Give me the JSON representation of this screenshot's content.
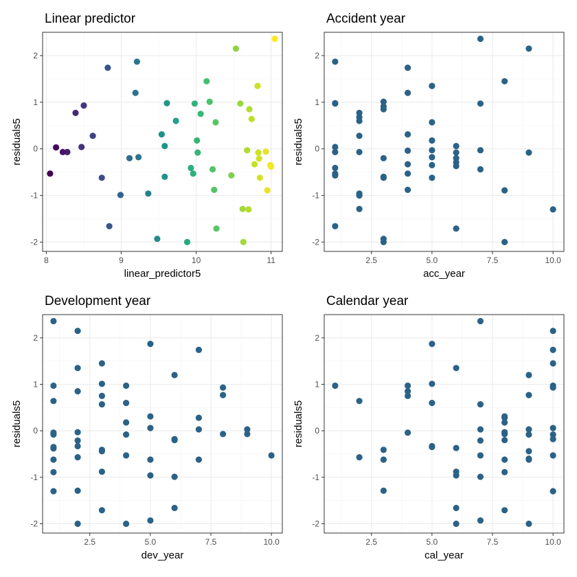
{
  "chart_data": [
    {
      "type": "scatter",
      "title": "Linear predictor",
      "xlabel": "linear_predictor5",
      "ylabel": "residuals5",
      "xlim": [
        7.95,
        11.15
      ],
      "ylim": [
        -2.2,
        2.5
      ],
      "xticks": [
        8,
        9,
        10,
        11
      ],
      "xtick_labels": [
        "8",
        "9",
        "10",
        "11"
      ],
      "yticks": [
        -2,
        -1,
        0,
        1,
        2
      ],
      "ytick_labels": [
        "-2",
        "-1",
        "0",
        "1",
        "2"
      ],
      "grid": true,
      "color_scale": "viridis",
      "color_range": [
        8.05,
        11.05
      ],
      "points": [
        {
          "x": 8.05,
          "y": -0.53
        },
        {
          "x": 8.13,
          "y": 0.03
        },
        {
          "x": 8.22,
          "y": -0.07
        },
        {
          "x": 8.28,
          "y": -0.07
        },
        {
          "x": 8.39,
          "y": 0.77
        },
        {
          "x": 8.47,
          "y": 0.04
        },
        {
          "x": 8.5,
          "y": 0.93
        },
        {
          "x": 8.62,
          "y": 0.28
        },
        {
          "x": 8.74,
          "y": -0.62
        },
        {
          "x": 8.82,
          "y": 1.74
        },
        {
          "x": 8.84,
          "y": -1.66
        },
        {
          "x": 8.99,
          "y": -0.99
        },
        {
          "x": 9.11,
          "y": -0.2
        },
        {
          "x": 9.19,
          "y": 1.2
        },
        {
          "x": 9.21,
          "y": 1.87
        },
        {
          "x": 9.23,
          "y": -0.18
        },
        {
          "x": 9.36,
          "y": -0.96
        },
        {
          "x": 9.48,
          "y": -1.93
        },
        {
          "x": 9.54,
          "y": 0.31
        },
        {
          "x": 9.58,
          "y": 0.06
        },
        {
          "x": 9.58,
          "y": -0.6
        },
        {
          "x": 9.61,
          "y": 0.98
        },
        {
          "x": 9.73,
          "y": 0.6
        },
        {
          "x": 9.88,
          "y": -2.0
        },
        {
          "x": 9.93,
          "y": -0.41
        },
        {
          "x": 9.96,
          "y": -0.53
        },
        {
          "x": 9.98,
          "y": 0.97
        },
        {
          "x": 10.01,
          "y": 0.18
        },
        {
          "x": 10.02,
          "y": -0.08
        },
        {
          "x": 10.06,
          "y": 0.75
        },
        {
          "x": 10.14,
          "y": 1.45
        },
        {
          "x": 10.18,
          "y": 1.01
        },
        {
          "x": 10.22,
          "y": -0.44
        },
        {
          "x": 10.24,
          "y": -0.88
        },
        {
          "x": 10.26,
          "y": 0.57
        },
        {
          "x": 10.27,
          "y": -1.71
        },
        {
          "x": 10.47,
          "y": -0.57
        },
        {
          "x": 10.53,
          "y": 2.15
        },
        {
          "x": 10.59,
          "y": 0.97
        },
        {
          "x": 10.62,
          "y": -1.29
        },
        {
          "x": 10.63,
          "y": -2.0
        },
        {
          "x": 10.68,
          "y": -0.03
        },
        {
          "x": 10.7,
          "y": -1.3
        },
        {
          "x": 10.71,
          "y": 0.85
        },
        {
          "x": 10.74,
          "y": 0.64
        },
        {
          "x": 10.78,
          "y": -0.33
        },
        {
          "x": 10.82,
          "y": 1.35
        },
        {
          "x": 10.83,
          "y": -0.08
        },
        {
          "x": 10.84,
          "y": -0.21
        },
        {
          "x": 10.85,
          "y": -0.62
        },
        {
          "x": 10.93,
          "y": -0.06
        },
        {
          "x": 10.95,
          "y": -0.89
        },
        {
          "x": 10.99,
          "y": -0.35
        },
        {
          "x": 11.0,
          "y": -0.38
        },
        {
          "x": 11.05,
          "y": 2.36
        }
      ]
    },
    {
      "type": "scatter",
      "title": "Accident year",
      "xlabel": "acc_year",
      "ylabel": "residuals5",
      "xlim": [
        0.55,
        10.45
      ],
      "ylim": [
        -2.2,
        2.5
      ],
      "xticks": [
        2.5,
        5.0,
        7.5,
        10.0
      ],
      "xtick_labels": [
        "2.5",
        "5.0",
        "7.5",
        "10.0"
      ],
      "yticks": [
        -2,
        -1,
        0,
        1,
        2
      ],
      "ytick_labels": [
        "-2",
        "-1",
        "0",
        "1",
        "2"
      ],
      "grid": true,
      "color": "#2b6287",
      "points": [
        {
          "x": 1,
          "y": 1.87
        },
        {
          "x": 1,
          "y": 0.97
        },
        {
          "x": 1,
          "y": 0.98
        },
        {
          "x": 1,
          "y": 0.04
        },
        {
          "x": 1,
          "y": -0.07
        },
        {
          "x": 1,
          "y": -0.41
        },
        {
          "x": 1,
          "y": -0.53
        },
        {
          "x": 1,
          "y": -0.57
        },
        {
          "x": 1,
          "y": -1.66
        },
        {
          "x": 2,
          "y": 0.77
        },
        {
          "x": 2,
          "y": 0.68
        },
        {
          "x": 2,
          "y": 0.6
        },
        {
          "x": 2,
          "y": 0.28
        },
        {
          "x": 2,
          "y": -0.07
        },
        {
          "x": 2,
          "y": -0.96
        },
        {
          "x": 2,
          "y": -1.0
        },
        {
          "x": 2,
          "y": -1.29
        },
        {
          "x": 3,
          "y": 1.01
        },
        {
          "x": 3,
          "y": 0.91
        },
        {
          "x": 3,
          "y": 0.85
        },
        {
          "x": 3,
          "y": -0.2
        },
        {
          "x": 3,
          "y": -0.6
        },
        {
          "x": 3,
          "y": -0.62
        },
        {
          "x": 3,
          "y": -1.93
        },
        {
          "x": 3,
          "y": -2.0
        },
        {
          "x": 4,
          "y": 1.74
        },
        {
          "x": 4,
          "y": 1.2
        },
        {
          "x": 4,
          "y": 0.31
        },
        {
          "x": 4,
          "y": -0.04
        },
        {
          "x": 4,
          "y": -0.33
        },
        {
          "x": 4,
          "y": -0.53
        },
        {
          "x": 4,
          "y": -0.88
        },
        {
          "x": 5,
          "y": 1.35
        },
        {
          "x": 5,
          "y": 0.57
        },
        {
          "x": 5,
          "y": 0.18
        },
        {
          "x": 5,
          "y": -0.03
        },
        {
          "x": 5,
          "y": -0.18
        },
        {
          "x": 5,
          "y": -0.35
        },
        {
          "x": 5,
          "y": -0.62
        },
        {
          "x": 6,
          "y": 0.06
        },
        {
          "x": 6,
          "y": -0.08
        },
        {
          "x": 6,
          "y": -0.2
        },
        {
          "x": 6,
          "y": -0.29
        },
        {
          "x": 6,
          "y": -0.37
        },
        {
          "x": 6,
          "y": -1.71
        },
        {
          "x": 7,
          "y": 2.36
        },
        {
          "x": 7,
          "y": 0.97
        },
        {
          "x": 7,
          "y": -0.03
        },
        {
          "x": 7,
          "y": -0.44
        },
        {
          "x": 8,
          "y": 1.45
        },
        {
          "x": 8,
          "y": -0.89
        },
        {
          "x": 8,
          "y": -2.0
        },
        {
          "x": 9,
          "y": 2.15
        },
        {
          "x": 9,
          "y": -0.08
        },
        {
          "x": 10,
          "y": -1.3
        }
      ]
    },
    {
      "type": "scatter",
      "title": "Development year",
      "xlabel": "dev_year",
      "ylabel": "residuals5",
      "xlim": [
        0.55,
        10.45
      ],
      "ylim": [
        -2.2,
        2.5
      ],
      "xticks": [
        2.5,
        5.0,
        7.5,
        10.0
      ],
      "xtick_labels": [
        "2.5",
        "5.0",
        "7.5",
        "10.0"
      ],
      "yticks": [
        -2,
        -1,
        0,
        1,
        2
      ],
      "ytick_labels": [
        "-2",
        "-1",
        "0",
        "1",
        "2"
      ],
      "grid": true,
      "color": "#2b6287",
      "points": [
        {
          "x": 1,
          "y": 2.36
        },
        {
          "x": 1,
          "y": 0.97
        },
        {
          "x": 1,
          "y": 0.64
        },
        {
          "x": 1,
          "y": -0.04
        },
        {
          "x": 1,
          "y": -0.08
        },
        {
          "x": 1,
          "y": -0.35
        },
        {
          "x": 1,
          "y": -0.38
        },
        {
          "x": 1,
          "y": -0.62
        },
        {
          "x": 1,
          "y": -0.89
        },
        {
          "x": 1,
          "y": -1.3
        },
        {
          "x": 2,
          "y": 2.15
        },
        {
          "x": 2,
          "y": 1.35
        },
        {
          "x": 2,
          "y": 0.85
        },
        {
          "x": 2,
          "y": -0.03
        },
        {
          "x": 2,
          "y": -0.21
        },
        {
          "x": 2,
          "y": -0.33
        },
        {
          "x": 2,
          "y": -0.57
        },
        {
          "x": 2,
          "y": -1.29
        },
        {
          "x": 2,
          "y": -2.0
        },
        {
          "x": 3,
          "y": 1.45
        },
        {
          "x": 3,
          "y": 1.01
        },
        {
          "x": 3,
          "y": 0.75
        },
        {
          "x": 3,
          "y": 0.57
        },
        {
          "x": 3,
          "y": -0.41
        },
        {
          "x": 3,
          "y": -0.44
        },
        {
          "x": 3,
          "y": -0.88
        },
        {
          "x": 3,
          "y": -1.71
        },
        {
          "x": 4,
          "y": 0.97
        },
        {
          "x": 4,
          "y": 0.6
        },
        {
          "x": 4,
          "y": 0.18
        },
        {
          "x": 4,
          "y": -0.08
        },
        {
          "x": 4,
          "y": -0.53
        },
        {
          "x": 4,
          "y": -2.0
        },
        {
          "x": 5,
          "y": 1.87
        },
        {
          "x": 5,
          "y": 0.31
        },
        {
          "x": 5,
          "y": 0.06
        },
        {
          "x": 5,
          "y": -0.62
        },
        {
          "x": 5,
          "y": -0.96
        },
        {
          "x": 5,
          "y": -1.93
        },
        {
          "x": 6,
          "y": 1.2
        },
        {
          "x": 6,
          "y": -0.18
        },
        {
          "x": 6,
          "y": -0.2
        },
        {
          "x": 6,
          "y": -0.99
        },
        {
          "x": 6,
          "y": -1.66
        },
        {
          "x": 7,
          "y": 1.74
        },
        {
          "x": 7,
          "y": 0.28
        },
        {
          "x": 7,
          "y": 0.03
        },
        {
          "x": 7,
          "y": -0.62
        },
        {
          "x": 8,
          "y": 0.93
        },
        {
          "x": 8,
          "y": 0.77
        },
        {
          "x": 8,
          "y": -0.07
        },
        {
          "x": 9,
          "y": 0.03
        },
        {
          "x": 9,
          "y": -0.07
        },
        {
          "x": 10,
          "y": -0.53
        }
      ]
    },
    {
      "type": "scatter",
      "title": "Calendar year",
      "xlabel": "cal_year",
      "ylabel": "residuals5",
      "xlim": [
        0.55,
        10.45
      ],
      "ylim": [
        -2.2,
        2.5
      ],
      "xticks": [
        2.5,
        5.0,
        7.5,
        10.0
      ],
      "xtick_labels": [
        "2.5",
        "5.0",
        "7.5",
        "10.0"
      ],
      "yticks": [
        -2,
        -1,
        0,
        1,
        2
      ],
      "ytick_labels": [
        "-2",
        "-1",
        "0",
        "1",
        "2"
      ],
      "grid": true,
      "color": "#2b6287",
      "points": [
        {
          "x": 1,
          "y": 0.97
        },
        {
          "x": 2,
          "y": 0.64
        },
        {
          "x": 2,
          "y": -0.57
        },
        {
          "x": 3,
          "y": -0.41
        },
        {
          "x": 3,
          "y": -0.62
        },
        {
          "x": 3,
          "y": -1.29
        },
        {
          "x": 4,
          "y": 0.97
        },
        {
          "x": 4,
          "y": 0.85
        },
        {
          "x": 4,
          "y": 0.75
        },
        {
          "x": 4,
          "y": -0.04
        },
        {
          "x": 5,
          "y": 1.87
        },
        {
          "x": 5,
          "y": 1.01
        },
        {
          "x": 5,
          "y": 0.6
        },
        {
          "x": 5,
          "y": -0.33
        },
        {
          "x": 5,
          "y": -0.35
        },
        {
          "x": 6,
          "y": 1.35
        },
        {
          "x": 6,
          "y": -0.37
        },
        {
          "x": 6,
          "y": -0.88
        },
        {
          "x": 6,
          "y": -0.96
        },
        {
          "x": 6,
          "y": -1.66
        },
        {
          "x": 6,
          "y": -2.0
        },
        {
          "x": 7,
          "y": 2.36
        },
        {
          "x": 7,
          "y": 0.57
        },
        {
          "x": 7,
          "y": 0.03
        },
        {
          "x": 7,
          "y": -0.21
        },
        {
          "x": 7,
          "y": -0.53
        },
        {
          "x": 7,
          "y": -0.99
        },
        {
          "x": 7,
          "y": -1.93
        },
        {
          "x": 8,
          "y": 0.31
        },
        {
          "x": 8,
          "y": 0.28
        },
        {
          "x": 8,
          "y": 0.18
        },
        {
          "x": 8,
          "y": -0.03
        },
        {
          "x": 8,
          "y": -0.07
        },
        {
          "x": 8,
          "y": -0.2
        },
        {
          "x": 8,
          "y": -0.62
        },
        {
          "x": 8,
          "y": -0.89
        },
        {
          "x": 8,
          "y": -1.71
        },
        {
          "x": 9,
          "y": 1.2
        },
        {
          "x": 9,
          "y": 0.77
        },
        {
          "x": 9,
          "y": 0.03
        },
        {
          "x": 9,
          "y": -0.08
        },
        {
          "x": 9,
          "y": -0.44
        },
        {
          "x": 9,
          "y": -0.6
        },
        {
          "x": 9,
          "y": -0.62
        },
        {
          "x": 9,
          "y": -2.0
        },
        {
          "x": 10,
          "y": 2.15
        },
        {
          "x": 10,
          "y": 1.74
        },
        {
          "x": 10,
          "y": 1.45
        },
        {
          "x": 10,
          "y": 0.97
        },
        {
          "x": 10,
          "y": 0.93
        },
        {
          "x": 10,
          "y": 0.06
        },
        {
          "x": 10,
          "y": -0.08
        },
        {
          "x": 10,
          "y": -0.18
        },
        {
          "x": 10,
          "y": -0.53
        },
        {
          "x": 10,
          "y": -1.3
        }
      ]
    }
  ]
}
